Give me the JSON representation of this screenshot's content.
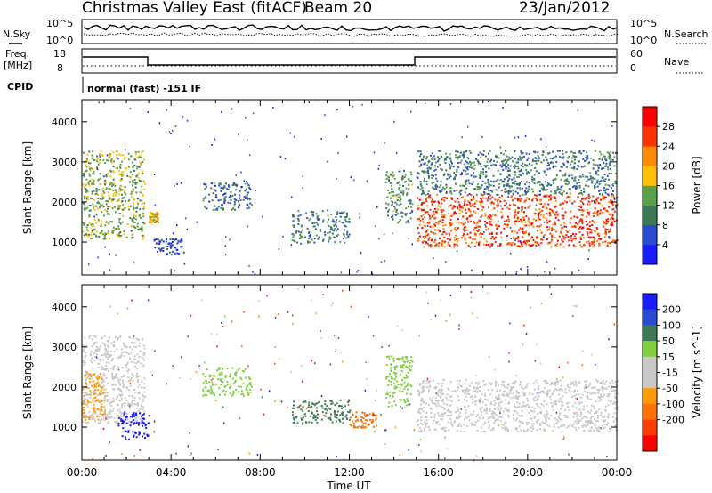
{
  "header": {
    "station": "Christmas Valley East (fitACF)",
    "beam": "Beam 20",
    "date": "23/Jan/2012"
  },
  "noise_panel": {
    "left_label": "N.Sky",
    "right_label": "N.Search",
    "ticks_left": [
      "10^5",
      "10^0"
    ],
    "ticks_right": [
      "10^5",
      "10^0"
    ]
  },
  "freq_panel": {
    "left_label_1": "Freq.",
    "left_label_2": "[MHz]",
    "right_label": "Nave",
    "ticks_left": [
      "18",
      "8"
    ],
    "ticks_right": [
      "60",
      "0"
    ]
  },
  "cpid": {
    "label": "CPID",
    "value": "normal (fast) -151 IF"
  },
  "colors": {
    "power": [
      "#1a1aff",
      "#2a4bd1",
      "#3b7a55",
      "#5aa04a",
      "#ffc000",
      "#ff8c00",
      "#ff3300",
      "#ff0000"
    ],
    "velocity": [
      "#1a1aff",
      "#2a4bd1",
      "#3b7a55",
      "#7fcf3f",
      "#c8c8c8",
      "#c8c8c8",
      "#ff9a00",
      "#ff7000",
      "#ff3c00",
      "#ff0000"
    ]
  },
  "chart_data": [
    {
      "type": "heatmap",
      "title": "",
      "xlabel": "",
      "ylabel": "Slant Range [km]",
      "xlim": [
        "00:00",
        "24:00"
      ],
      "ylim": [
        180,
        4550
      ],
      "x_ticks": [
        "00:00",
        "04:00",
        "08:00",
        "12:00",
        "16:00",
        "20:00",
        "00:00"
      ],
      "y_ticks": [
        1000,
        2000,
        3000,
        4000
      ],
      "colorbar": {
        "label": "Power [dB]",
        "ticks": [
          "4",
          "8",
          "12",
          "16",
          "20",
          "24",
          "28"
        ],
        "range": [
          0,
          32
        ]
      },
      "regions": [
        {
          "t0": 0.0,
          "t1": 2.8,
          "r0": 1100,
          "r1": 3300,
          "field": "power",
          "value": 14
        },
        {
          "t0": 3.0,
          "t1": 3.4,
          "r0": 1500,
          "r1": 1800,
          "field": "power",
          "value": 18
        },
        {
          "t0": 3.2,
          "t1": 4.6,
          "r0": 700,
          "r1": 1100,
          "field": "power",
          "value": 6
        },
        {
          "t0": 5.4,
          "t1": 7.6,
          "r0": 1800,
          "r1": 2500,
          "field": "power",
          "value": 8
        },
        {
          "t0": 9.4,
          "t1": 12.0,
          "r0": 1000,
          "r1": 1800,
          "field": "power",
          "value": 10
        },
        {
          "t0": 13.6,
          "t1": 14.8,
          "r0": 1500,
          "r1": 2800,
          "field": "power",
          "value": 12
        },
        {
          "t0": 15.0,
          "t1": 24.0,
          "r0": 900,
          "r1": 2200,
          "field": "power",
          "value": 26
        },
        {
          "t0": 15.0,
          "t1": 24.0,
          "r0": 2200,
          "r1": 3300,
          "field": "power",
          "value": 10
        }
      ]
    },
    {
      "type": "heatmap",
      "title": "",
      "xlabel": "Time UT",
      "ylabel": "Slant Range [km]",
      "xlim": [
        "00:00",
        "24:00"
      ],
      "ylim": [
        180,
        4550
      ],
      "x_ticks": [
        "00:00",
        "04:00",
        "08:00",
        "12:00",
        "16:00",
        "20:00",
        "00:00"
      ],
      "y_ticks": [
        1000,
        2000,
        3000,
        4000
      ],
      "colorbar": {
        "label": "Velocity [m s^-1]",
        "ticks": [
          "200",
          "100",
          "50",
          "15",
          "-15",
          "-50",
          "-100",
          "-200"
        ],
        "range": [
          -250,
          250
        ]
      },
      "regions": [
        {
          "t0": 0.0,
          "t1": 2.8,
          "r0": 1100,
          "r1": 3300,
          "field": "velocity",
          "value": 0
        },
        {
          "t0": 0.0,
          "t1": 1.0,
          "r0": 1200,
          "r1": 2400,
          "field": "velocity",
          "value": -40
        },
        {
          "t0": 1.6,
          "t1": 3.0,
          "r0": 700,
          "r1": 1400,
          "field": "velocity",
          "value": 220
        },
        {
          "t0": 5.4,
          "t1": 7.6,
          "r0": 1800,
          "r1": 2500,
          "field": "velocity",
          "value": 30
        },
        {
          "t0": 9.4,
          "t1": 12.0,
          "r0": 1100,
          "r1": 1700,
          "field": "velocity",
          "value": 60
        },
        {
          "t0": 12.0,
          "t1": 13.2,
          "r0": 1000,
          "r1": 1400,
          "field": "velocity",
          "value": -60
        },
        {
          "t0": 13.6,
          "t1": 14.8,
          "r0": 1500,
          "r1": 2800,
          "field": "velocity",
          "value": 30
        },
        {
          "t0": 15.0,
          "t1": 24.0,
          "r0": 900,
          "r1": 2200,
          "field": "velocity",
          "value": 0
        }
      ]
    }
  ]
}
